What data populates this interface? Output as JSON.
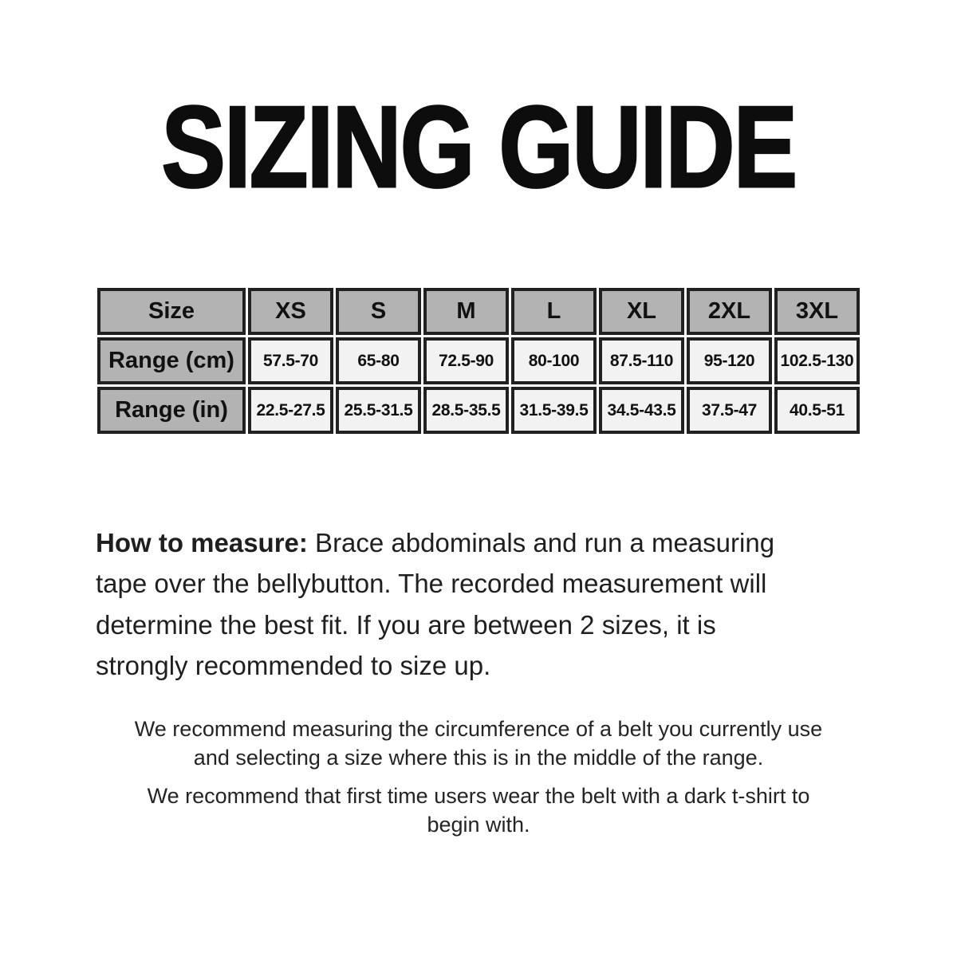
{
  "title": "SIZING GUIDE",
  "table": {
    "columns": [
      "Size",
      "XS",
      "S",
      "M",
      "L",
      "XL",
      "2XL",
      "3XL"
    ],
    "rows": [
      {
        "label": "Range (cm)",
        "values": [
          "57.5-70",
          "65-80",
          "72.5-90",
          "80-100",
          "87.5-110",
          "95-120",
          "102.5-130"
        ]
      },
      {
        "label": "Range (in)",
        "values": [
          "22.5-27.5",
          "25.5-31.5",
          "28.5-35.5",
          "31.5-39.5",
          "34.5-43.5",
          "37.5-47",
          "40.5-51"
        ]
      }
    ]
  },
  "how_to": {
    "label": "How to measure:",
    "text": " Brace abdominals and run a measuring\ntape over the bellybutton. The recorded measurement will\ndetermine the best fit. If you are between 2 sizes, it is\nstrongly recommended to size up."
  },
  "notes": [
    "We recommend measuring the circumference of a belt you currently use\nand selecting a size where this is in the middle of the range.",
    "We recommend that first time users wear the belt with a dark t-shirt to\nbegin with."
  ],
  "colors": {
    "header_bg": "#b3b3b3",
    "cell_bg": "#f2f2f2",
    "border": "#212121",
    "text": "#1b1b1b"
  }
}
